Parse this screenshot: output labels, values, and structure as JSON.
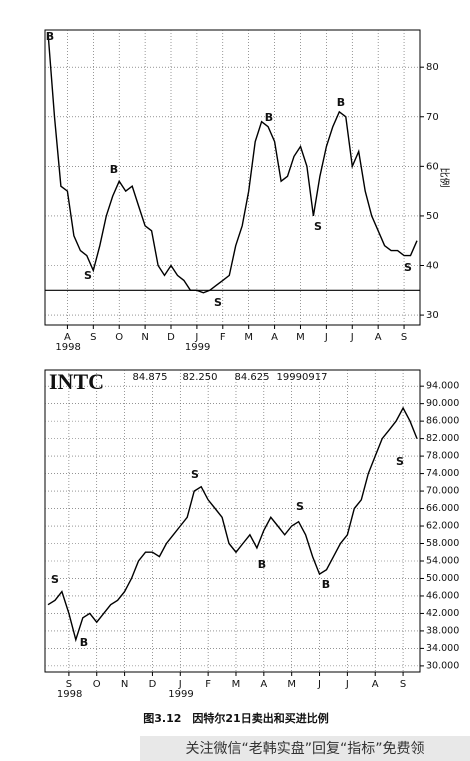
{
  "chart_data": [
    {
      "type": "line",
      "y_label": "比例",
      "categories": [
        null,
        null,
        null,
        "A",
        null,
        null,
        null,
        "S",
        null,
        null,
        null,
        "O",
        null,
        null,
        null,
        "N",
        null,
        null,
        null,
        "D",
        null,
        null,
        null,
        "J",
        null,
        null,
        null,
        "F",
        null,
        null,
        null,
        "M",
        null,
        null,
        null,
        "A",
        null,
        null,
        null,
        "M",
        null,
        null,
        null,
        "J",
        null,
        null,
        null,
        "J",
        null,
        null,
        null,
        "A",
        null,
        null,
        null,
        "S",
        null,
        null
      ],
      "year_labels": [
        "1998",
        "1999"
      ],
      "series": [
        {
          "color": "#000000",
          "values": [
            87,
            70,
            56,
            55,
            46,
            43,
            42,
            39,
            44,
            50,
            54,
            57,
            55,
            56,
            52,
            48,
            47,
            40,
            38,
            40,
            38,
            37,
            35,
            35,
            34.5,
            35,
            36,
            37,
            38,
            44,
            48,
            55,
            65,
            69,
            68,
            65,
            57,
            58,
            62,
            64,
            60,
            50,
            58,
            64,
            68,
            71,
            70,
            60,
            63,
            55,
            50,
            47,
            44,
            43,
            43,
            42,
            42,
            45
          ]
        }
      ],
      "reference_line": 35,
      "annotations": [
        "B",
        "S",
        "B",
        "S",
        "B",
        "S",
        "B",
        "S"
      ],
      "ylim": [
        28,
        87.5
      ],
      "yticks": [
        30,
        40,
        50,
        60,
        70,
        80
      ],
      "grid": true
    },
    {
      "type": "line",
      "title": "INTC",
      "header_values": [
        "84.875",
        "82.250",
        "84.625",
        "19990917"
      ],
      "categories": [
        null,
        null,
        null,
        "S",
        null,
        null,
        null,
        "O",
        null,
        null,
        null,
        "N",
        null,
        null,
        null,
        "D",
        null,
        null,
        null,
        "J",
        null,
        null,
        null,
        "F",
        null,
        null,
        null,
        "M",
        null,
        null,
        null,
        "A",
        null,
        null,
        null,
        "M",
        null,
        null,
        null,
        "J",
        null,
        null,
        null,
        "J",
        null,
        null,
        null,
        "A",
        null,
        null,
        null,
        "S",
        null,
        null
      ],
      "year_labels": [
        "1998",
        "1999"
      ],
      "series": [
        {
          "color": "#000000",
          "values": [
            44,
            45,
            47,
            42,
            36,
            41,
            42,
            40,
            42,
            44,
            45,
            47,
            50,
            54,
            56,
            56,
            55,
            58,
            60,
            62,
            64,
            70,
            71,
            68,
            66,
            64,
            58,
            56,
            58,
            60,
            57,
            61,
            64,
            62,
            60,
            62,
            63,
            60,
            55,
            51,
            52,
            55,
            58,
            60,
            66,
            68,
            74,
            78,
            82,
            84,
            86,
            89,
            86,
            82
          ]
        }
      ],
      "annotations": [
        "S",
        "B",
        "S",
        "B",
        "S",
        "B",
        "S"
      ],
      "ylim": [
        28.6,
        97.7
      ],
      "yticks": [
        {
          "value": 30,
          "label": "30.000"
        },
        {
          "value": 34,
          "label": "34.000"
        },
        {
          "value": 38,
          "label": "38.000"
        },
        {
          "value": 42,
          "label": "42.000"
        },
        {
          "value": 46,
          "label": "46.000"
        },
        {
          "value": 50,
          "label": "50.000"
        },
        {
          "value": 54,
          "label": "54.000"
        },
        {
          "value": 58,
          "label": "58.000"
        },
        {
          "value": 62,
          "label": "62.000"
        },
        {
          "value": 66,
          "label": "66.000"
        },
        {
          "value": 70,
          "label": "70.000"
        },
        {
          "value": 74,
          "label": "74.000"
        },
        {
          "value": 78,
          "label": "78.000"
        },
        {
          "value": 82,
          "label": "82.000"
        },
        {
          "value": 86,
          "label": "86.000"
        },
        {
          "value": 90,
          "label": "90.000"
        },
        {
          "value": 94,
          "label": "94.000"
        }
      ],
      "grid": true
    }
  ],
  "caption": "图3.12　因特尔21日卖出和买进比例",
  "watermark": "关注微信“老韩实盘”回复“指标”免费领"
}
